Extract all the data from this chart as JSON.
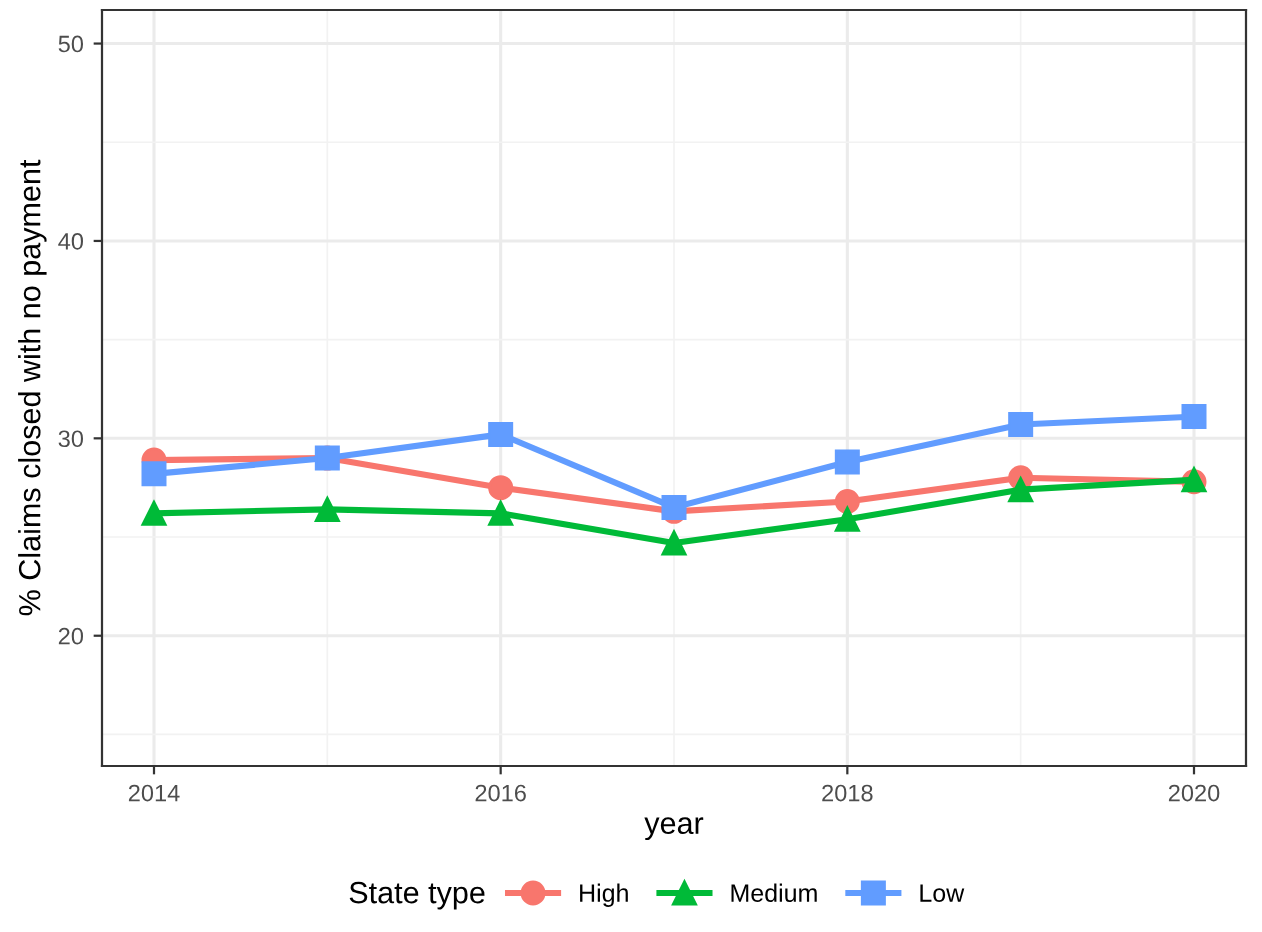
{
  "chart_data": {
    "type": "line",
    "xlabel": "year",
    "ylabel": "% Claims closed with no payment",
    "legend_title": "State type",
    "x": [
      2014,
      2015,
      2016,
      2017,
      2018,
      2019,
      2020
    ],
    "series": [
      {
        "name": "High",
        "color": "#f8766d",
        "marker": "circle",
        "values": [
          28.9,
          29.0,
          27.5,
          26.3,
          26.8,
          28.0,
          27.8
        ]
      },
      {
        "name": "Medium",
        "color": "#00ba38",
        "marker": "triangle",
        "values": [
          26.2,
          26.4,
          26.2,
          24.7,
          25.9,
          27.4,
          27.9
        ]
      },
      {
        "name": "Low",
        "color": "#619cff",
        "marker": "square",
        "values": [
          28.2,
          29.0,
          30.2,
          26.5,
          28.8,
          30.7,
          31.1
        ]
      }
    ],
    "xlim": [
      2013.7,
      2020.3
    ],
    "ylim": [
      13.4,
      51.7
    ],
    "xticks": [
      2014,
      2016,
      2018,
      2020
    ],
    "yticks": [
      20,
      30,
      40,
      50
    ],
    "grid": true,
    "legend": "bottom",
    "line_style": "solid"
  }
}
